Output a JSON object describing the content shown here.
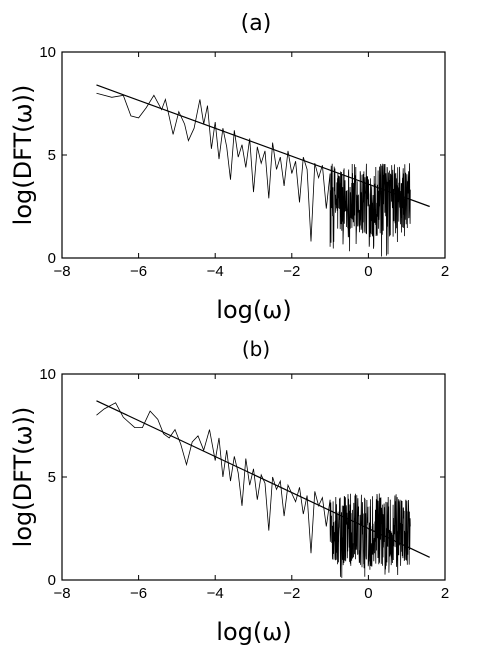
{
  "chart_data": [
    {
      "type": "line",
      "title": "(a)",
      "xlabel": "log(ω)",
      "ylabel": "log(DFT(ω))",
      "xlim": [
        -8,
        2
      ],
      "ylim": [
        0,
        10
      ],
      "xticks": [
        "-8",
        "-6",
        "-4",
        "-2",
        "0",
        "2"
      ],
      "yticks": [
        "0",
        "5",
        "10"
      ],
      "grid": false,
      "series": [
        {
          "style": "noisy spectrum",
          "x": [
            -7.1,
            -6.7,
            -6.4,
            -6.2,
            -6.0,
            -5.8,
            -5.6,
            -5.4,
            -5.3,
            -5.1,
            -4.95,
            -4.8,
            -4.7,
            -4.55,
            -4.4,
            -4.3,
            -4.2,
            -4.1,
            -4.0,
            -3.9,
            -3.8,
            -3.7,
            -3.6,
            -3.5,
            -3.4,
            -3.3,
            -3.2,
            -3.1,
            -3.0,
            -2.9,
            -2.8,
            -2.7,
            -2.6,
            -2.5,
            -2.4,
            -2.3,
            -2.2,
            -2.1,
            -2.0,
            -1.9,
            -1.8,
            -1.7,
            -1.6,
            -1.5,
            -1.4,
            -1.3,
            -1.2,
            -1.1,
            -1.0
          ],
          "y": [
            8.0,
            7.8,
            7.9,
            6.9,
            6.8,
            7.3,
            7.9,
            7.2,
            7.7,
            6.0,
            7.1,
            6.5,
            5.7,
            6.3,
            7.7,
            6.5,
            7.4,
            5.3,
            6.6,
            4.8,
            6.3,
            5.4,
            3.8,
            6.2,
            4.9,
            5.5,
            4.4,
            5.8,
            3.2,
            5.4,
            4.6,
            5.2,
            2.9,
            5.6,
            4.3,
            4.9,
            3.5,
            5.2,
            4.1,
            4.7,
            2.7,
            4.9,
            4.3,
            0.8,
            4.6,
            3.9,
            4.5,
            2.4,
            4.1
          ]
        },
        {
          "style": "fitted line",
          "x": [
            -7.1,
            1.6
          ],
          "y": [
            8.4,
            2.5
          ]
        }
      ],
      "noise_region": {
        "x": [
          -1.0,
          1.1
        ],
        "y_center": 2.8,
        "y_spread": 1.8
      }
    },
    {
      "type": "line",
      "title": "(b)",
      "xlabel": "log(ω)",
      "ylabel": "log(DFT(ω))",
      "xlim": [
        -8,
        2
      ],
      "ylim": [
        0,
        10
      ],
      "xticks": [
        "-8",
        "-6",
        "-4",
        "-2",
        "0",
        "2"
      ],
      "yticks": [
        "0",
        "5",
        "10"
      ],
      "grid": false,
      "series": [
        {
          "style": "noisy spectrum",
          "x": [
            -7.1,
            -6.9,
            -6.6,
            -6.4,
            -6.1,
            -5.9,
            -5.7,
            -5.5,
            -5.35,
            -5.2,
            -5.05,
            -4.9,
            -4.75,
            -4.6,
            -4.45,
            -4.3,
            -4.15,
            -4.0,
            -3.9,
            -3.8,
            -3.7,
            -3.6,
            -3.5,
            -3.4,
            -3.3,
            -3.2,
            -3.1,
            -3.0,
            -2.9,
            -2.8,
            -2.7,
            -2.6,
            -2.5,
            -2.4,
            -2.3,
            -2.2,
            -2.1,
            -2.0,
            -1.9,
            -1.8,
            -1.7,
            -1.6,
            -1.5,
            -1.4,
            -1.3,
            -1.2,
            -1.1,
            -1.0
          ],
          "y": [
            8.0,
            8.3,
            8.6,
            7.9,
            7.4,
            7.4,
            8.2,
            7.8,
            7.1,
            6.9,
            7.3,
            6.6,
            5.6,
            6.7,
            7.0,
            6.3,
            7.3,
            5.8,
            6.9,
            5.0,
            6.3,
            4.8,
            6.0,
            5.2,
            3.6,
            5.9,
            4.6,
            5.4,
            3.9,
            5.1,
            4.7,
            2.4,
            5.0,
            4.4,
            4.8,
            3.1,
            4.6,
            4.2,
            3.8,
            4.5,
            3.2,
            4.1,
            1.3,
            4.3,
            3.6,
            4.0,
            2.6,
            3.9
          ]
        },
        {
          "style": "fitted line",
          "x": [
            -7.1,
            1.6
          ],
          "y": [
            8.7,
            1.1
          ]
        }
      ],
      "noise_region": {
        "x": [
          -1.0,
          1.1
        ],
        "y_center": 2.4,
        "y_spread": 1.8
      }
    }
  ]
}
